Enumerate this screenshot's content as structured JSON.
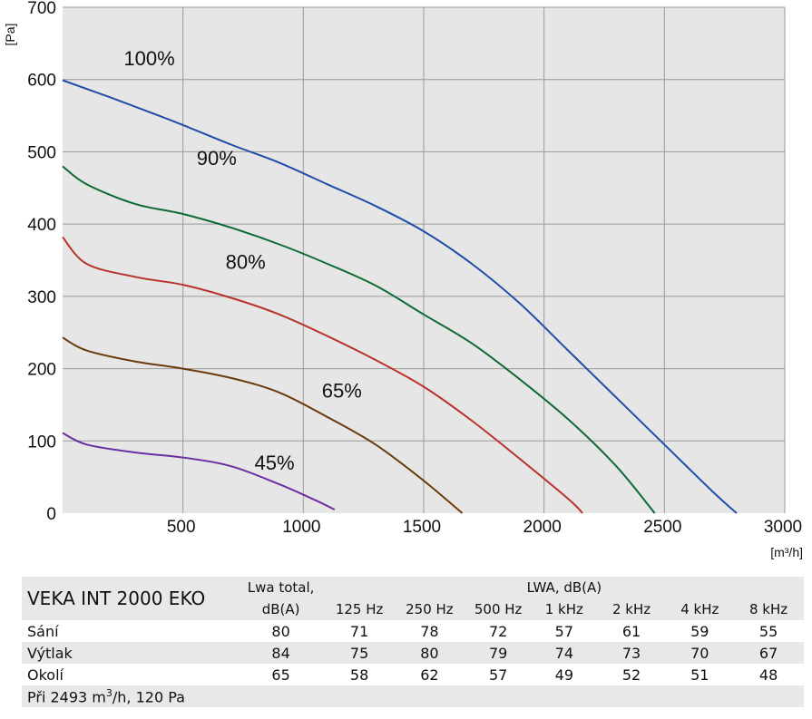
{
  "chart_data": {
    "type": "line",
    "xlabel": "[m³/h]",
    "ylabel": "[Pa]",
    "xlim": [
      0,
      3000
    ],
    "ylim": [
      0,
      700
    ],
    "xticks": [
      0,
      500,
      1000,
      1500,
      2000,
      2500,
      3000
    ],
    "xtick_labels": [
      "",
      "500",
      "1000",
      "1500",
      "2000",
      "2500",
      "3000"
    ],
    "yticks": [
      0,
      100,
      200,
      300,
      400,
      500,
      600,
      700
    ],
    "ytick_labels": [
      "0",
      "100",
      "200",
      "300",
      "400",
      "500",
      "600",
      "700"
    ],
    "grid": true,
    "series": [
      {
        "name": "100%",
        "color": "#1f4ea8",
        "label_at": [
          360,
          620
        ],
        "points": [
          [
            0,
            599
          ],
          [
            200,
            575
          ],
          [
            400,
            550
          ],
          [
            500,
            537
          ],
          [
            700,
            510
          ],
          [
            900,
            485
          ],
          [
            1100,
            455
          ],
          [
            1300,
            425
          ],
          [
            1500,
            390
          ],
          [
            1700,
            345
          ],
          [
            1900,
            290
          ],
          [
            2100,
            225
          ],
          [
            2300,
            160
          ],
          [
            2500,
            95
          ],
          [
            2700,
            30
          ],
          [
            2800,
            0
          ]
        ]
      },
      {
        "name": "90%",
        "color": "#0f6a35",
        "label_at": [
          640,
          482
        ],
        "points": [
          [
            0,
            480
          ],
          [
            100,
            455
          ],
          [
            300,
            428
          ],
          [
            500,
            414
          ],
          [
            700,
            395
          ],
          [
            900,
            372
          ],
          [
            1100,
            345
          ],
          [
            1300,
            315
          ],
          [
            1500,
            275
          ],
          [
            1700,
            235
          ],
          [
            1900,
            185
          ],
          [
            2100,
            130
          ],
          [
            2300,
            65
          ],
          [
            2460,
            0
          ]
        ]
      },
      {
        "name": "80%",
        "color": "#b8332b",
        "label_at": [
          760,
          338
        ],
        "points": [
          [
            0,
            382
          ],
          [
            100,
            345
          ],
          [
            300,
            327
          ],
          [
            500,
            316
          ],
          [
            700,
            298
          ],
          [
            900,
            275
          ],
          [
            1100,
            245
          ],
          [
            1300,
            212
          ],
          [
            1500,
            175
          ],
          [
            1700,
            128
          ],
          [
            1900,
            75
          ],
          [
            2100,
            20
          ],
          [
            2160,
            0
          ]
        ]
      },
      {
        "name": "65%",
        "color": "#6b3a0a",
        "label_at": [
          1160,
          160
        ],
        "points": [
          [
            0,
            243
          ],
          [
            100,
            225
          ],
          [
            300,
            210
          ],
          [
            500,
            200
          ],
          [
            700,
            187
          ],
          [
            900,
            167
          ],
          [
            1100,
            133
          ],
          [
            1300,
            95
          ],
          [
            1500,
            45
          ],
          [
            1660,
            0
          ]
        ]
      },
      {
        "name": "45%",
        "color": "#6a2fa0",
        "label_at": [
          880,
          60
        ],
        "points": [
          [
            0,
            111
          ],
          [
            100,
            95
          ],
          [
            300,
            84
          ],
          [
            500,
            77
          ],
          [
            700,
            65
          ],
          [
            900,
            40
          ],
          [
            1050,
            18
          ],
          [
            1130,
            5
          ]
        ]
      }
    ]
  },
  "table": {
    "title": "VEKA INT 2000 EKO",
    "lwa_total_line1": "Lwa total,",
    "lwa_total_line2": "dB(A)",
    "lwa_band_header": "LWA, dB(A)",
    "bands": [
      "125  Hz",
      "250  Hz",
      "500  Hz",
      "1 kHz",
      "2 kHz",
      "4  kHz",
      "8 kHz"
    ],
    "rows": [
      {
        "label": "Sání",
        "total": "80",
        "values": [
          "71",
          "78",
          "72",
          "57",
          "61",
          "59",
          "55"
        ]
      },
      {
        "label": "Výtlak",
        "total": "84",
        "values": [
          "75",
          "80",
          "79",
          "74",
          "73",
          "70",
          "67"
        ]
      },
      {
        "label": "Okolí",
        "total": "65",
        "values": [
          "58",
          "62",
          "57",
          "49",
          "52",
          "51",
          "48"
        ]
      }
    ],
    "footer_prefix": "Při 2493   m",
    "footer_sup": "3",
    "footer_suffix": "/h, 120 Pa"
  }
}
